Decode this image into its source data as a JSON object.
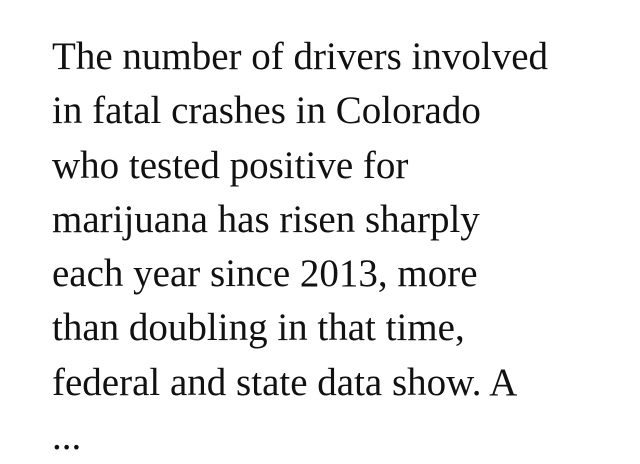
{
  "paragraph": {
    "lines": [
      "The number of drivers involved",
      "in fatal crashes in Colorado",
      "who tested positive for",
      "marijuana has risen sharply",
      "each year since 2013, more",
      "than doubling in that time,",
      "federal and state data show. A",
      "..."
    ]
  }
}
